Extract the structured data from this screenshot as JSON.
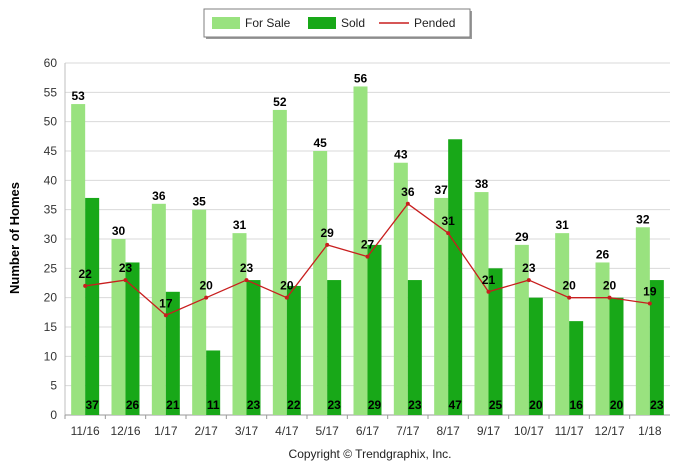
{
  "chart_data": {
    "type": "bar",
    "title": "",
    "xlabel": "",
    "ylabel": "Number of Homes",
    "ylim": [
      0,
      60
    ],
    "yticks": [
      0,
      5,
      10,
      15,
      20,
      25,
      30,
      35,
      40,
      45,
      50,
      55,
      60
    ],
    "grid": true,
    "legend_position": "top-center",
    "categories": [
      "11/16",
      "12/16",
      "1/17",
      "2/17",
      "3/17",
      "4/17",
      "5/17",
      "6/17",
      "7/17",
      "8/17",
      "9/17",
      "10/17",
      "11/17",
      "12/17",
      "1/18"
    ],
    "series": [
      {
        "name": "For Sale",
        "type": "bar",
        "color": "#99e27f",
        "values": [
          53,
          30,
          36,
          35,
          31,
          52,
          45,
          56,
          43,
          37,
          38,
          29,
          31,
          26,
          32
        ]
      },
      {
        "name": "Sold",
        "type": "bar",
        "color": "#18a818",
        "values": [
          37,
          26,
          21,
          11,
          23,
          22,
          23,
          29,
          23,
          47,
          25,
          20,
          16,
          20,
          23
        ]
      },
      {
        "name": "Pended",
        "type": "line",
        "color": "#c81e1e",
        "values": [
          22,
          23,
          17,
          20,
          23,
          20,
          29,
          27,
          36,
          31,
          21,
          23,
          20,
          20,
          19
        ]
      }
    ],
    "footer": "Copyright © Trendgraphix, Inc."
  }
}
